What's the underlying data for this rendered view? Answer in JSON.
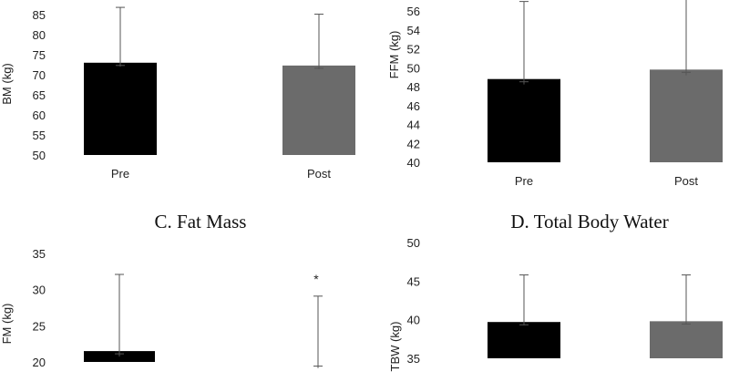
{
  "colors": {
    "pre": "#000000",
    "post": "#6b6b6b",
    "post_dark": "#3a3a3a",
    "error": "#555555"
  },
  "chart_data": [
    {
      "type": "bar",
      "title": "",
      "ylabel": "BM (kg)",
      "categories": [
        "Pre",
        "Post"
      ],
      "values": [
        73.0,
        72.3
      ],
      "errors": [
        13.8,
        12.8
      ],
      "ylim": [
        50,
        85
      ],
      "yticks": [
        "50",
        "55",
        "60",
        "65",
        "70",
        "75",
        "80",
        "85"
      ],
      "bar_colors": [
        "#000000",
        "#6b6b6b"
      ],
      "significance": [
        "",
        ""
      ]
    },
    {
      "type": "bar",
      "title": "",
      "ylabel": "FFM (kg)",
      "categories": [
        "Pre",
        "Post"
      ],
      "values": [
        48.8,
        49.8
      ],
      "errors": [
        8.2,
        8.6
      ],
      "ylim": [
        40,
        56
      ],
      "yticks": [
        "40",
        "42",
        "44",
        "46",
        "48",
        "50",
        "52",
        "54",
        "56"
      ],
      "bar_colors": [
        "#000000",
        "#6b6b6b"
      ],
      "significance": [
        "",
        ""
      ]
    },
    {
      "type": "bar",
      "title": "C. Fat Mass",
      "ylabel": "FM (kg)",
      "categories": [
        "Pre",
        "Post"
      ],
      "values": [
        21.5,
        19.8
      ],
      "errors": [
        10.6,
        9.3
      ],
      "ylim": [
        20,
        35
      ],
      "yticks": [
        "20",
        "25",
        "30",
        "35"
      ],
      "bar_colors": [
        "#000000",
        "#3a3a3a"
      ],
      "significance": [
        "",
        "*"
      ]
    },
    {
      "type": "bar",
      "title": "D. Total Body Water",
      "ylabel": "TBW (kg)",
      "categories": [
        "Pre",
        "Post"
      ],
      "values": [
        39.7,
        39.8
      ],
      "errors": [
        6.1,
        6.0
      ],
      "ylim": [
        35,
        50
      ],
      "yticks": [
        "35",
        "40",
        "45",
        "50"
      ],
      "bar_colors": [
        "#000000",
        "#6b6b6b"
      ],
      "significance": [
        "",
        ""
      ]
    }
  ]
}
